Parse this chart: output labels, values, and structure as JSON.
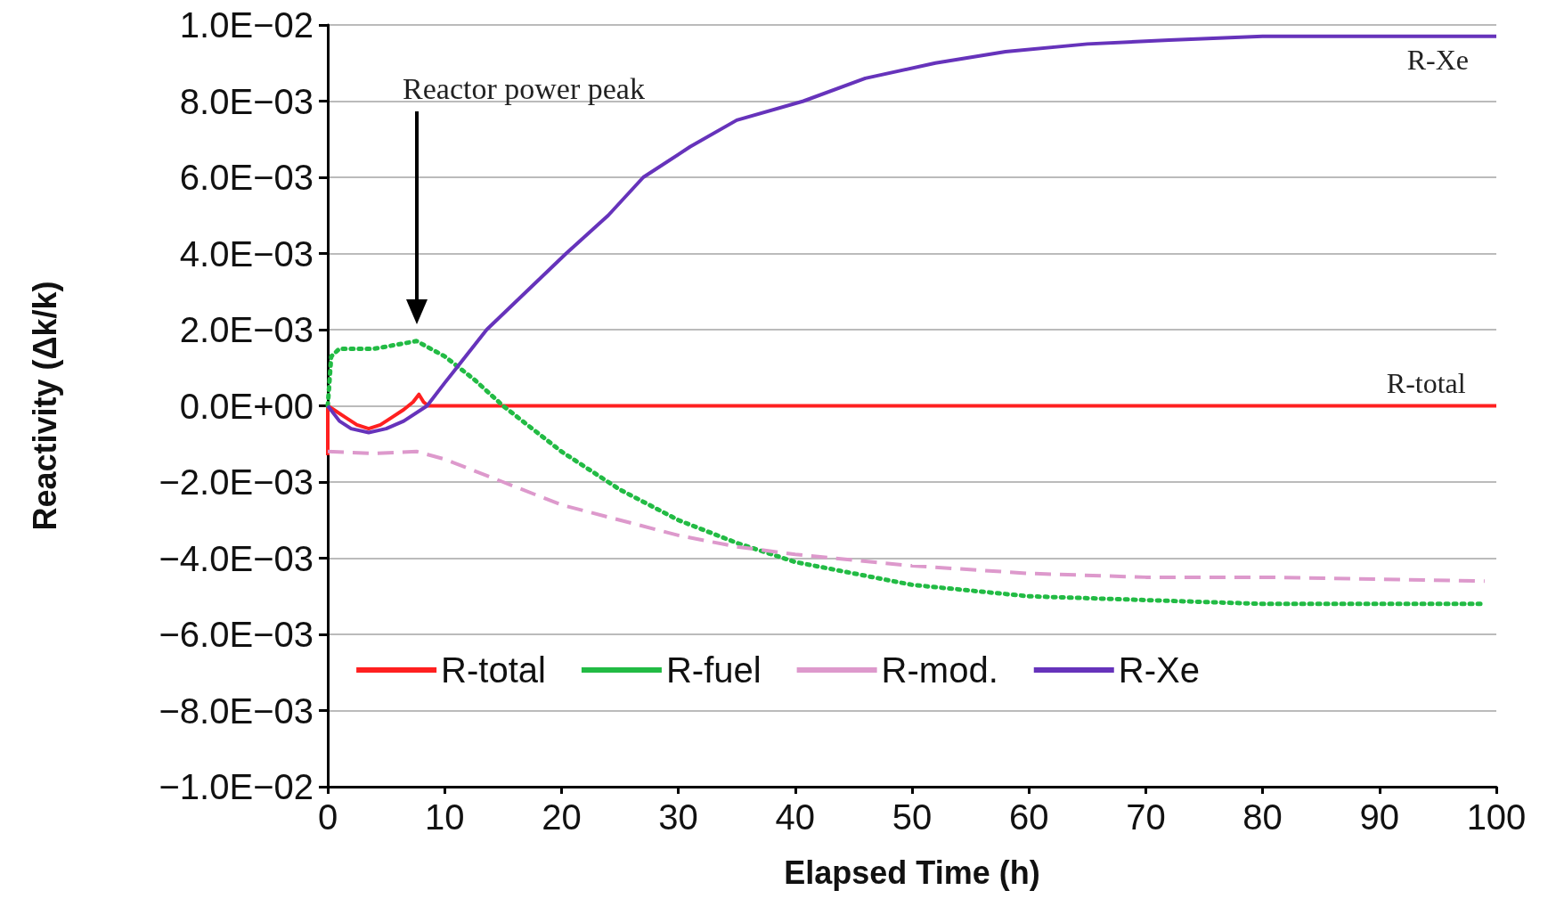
{
  "chart_data": {
    "type": "line",
    "xlabel": "Elapsed Time (h)",
    "ylabel": "Reactivity (Δk/k)",
    "xlim": [
      0,
      100
    ],
    "xticks": [
      0,
      10,
      20,
      30,
      40,
      50,
      60,
      70,
      80,
      90,
      100
    ],
    "ylim": [
      -0.01,
      0.01
    ],
    "yticks": [
      {
        "value": -0.01,
        "label": "−1.0E−02"
      },
      {
        "value": -0.008,
        "label": "−8.0E−03"
      },
      {
        "value": -0.006,
        "label": "−6.0E−03"
      },
      {
        "value": -0.004,
        "label": "−4.0E−03"
      },
      {
        "value": -0.002,
        "label": "−2.0E−03"
      },
      {
        "value": 0,
        "label": "0.0E+00"
      },
      {
        "value": 0.002,
        "label": "2.0E−03"
      },
      {
        "value": 0.004,
        "label": "4.0E−03"
      },
      {
        "value": 0.006,
        "label": "6.0E−03"
      },
      {
        "value": 0.008,
        "label": "8.0E−03"
      },
      {
        "value": 0.01,
        "label": "1.0E−02"
      }
    ],
    "grid": "y",
    "legend": "bottom",
    "marker": "none",
    "annotations": [
      "Reactor power peak",
      {
        "text": "R-Xe",
        "x": 95,
        "y": 0.0097
      },
      {
        "text": "R-total",
        "x": 94,
        "y": 0
      }
    ],
    "series": [
      {
        "name": "R-total",
        "color": "#ff2020",
        "line_style": "solid",
        "x": [
          0,
          0,
          0.5,
          1.5,
          2.5,
          3.5,
          4.5,
          5.5,
          6.5,
          7.3,
          7.8,
          8.2,
          8.6,
          10,
          20,
          40,
          60,
          80,
          100
        ],
        "values": [
          -0.0013,
          0,
          -0.0001,
          -0.0003,
          -0.0005,
          -0.0006,
          -0.0005,
          -0.0003,
          -0.0001,
          0.0001,
          0.0003,
          0.0001,
          0,
          0,
          0,
          0,
          0,
          0,
          0
        ]
      },
      {
        "name": "R-fuel",
        "color": "#22bb44",
        "line_style": "dotted",
        "x": [
          0,
          0.3,
          1,
          4,
          7.6,
          10,
          12.5,
          15,
          20,
          25,
          30,
          35,
          40,
          50,
          60,
          70,
          80,
          99
        ],
        "values": [
          0,
          0.0013,
          0.0015,
          0.0015,
          0.0017,
          0.0013,
          0.0007,
          0,
          -0.0012,
          -0.0022,
          -0.003,
          -0.0036,
          -0.0041,
          -0.0047,
          -0.005,
          -0.0051,
          -0.0052,
          -0.0052
        ]
      },
      {
        "name": "R-mod.",
        "color": "#dd99cc",
        "line_style": "dashed",
        "x": [
          0,
          4,
          7.6,
          10,
          15,
          20,
          25,
          30,
          35,
          40,
          50,
          60,
          70,
          80,
          99
        ],
        "values": [
          -0.0012,
          -0.00125,
          -0.0012,
          -0.0014,
          -0.002,
          -0.0026,
          -0.003,
          -0.0034,
          -0.0037,
          -0.0039,
          -0.0042,
          -0.0044,
          -0.0045,
          -0.0045,
          -0.0046
        ]
      },
      {
        "name": "R-Xe",
        "color": "#6633bb",
        "line_style": "solid",
        "x": [
          0,
          1,
          2,
          3.5,
          5,
          6.5,
          8.5,
          10,
          13.6,
          17,
          20.4,
          24,
          27,
          31,
          35,
          40.7,
          46,
          52,
          58,
          65,
          72,
          80,
          90,
          100
        ],
        "values": [
          0,
          -0.0004,
          -0.0006,
          -0.0007,
          -0.0006,
          -0.0004,
          0,
          0.0006,
          0.002,
          0.003,
          0.004,
          0.005,
          0.006,
          0.0068,
          0.0075,
          0.008,
          0.0086,
          0.009,
          0.0093,
          0.0095,
          0.0096,
          0.0097,
          0.0097,
          0.0097
        ]
      }
    ]
  }
}
